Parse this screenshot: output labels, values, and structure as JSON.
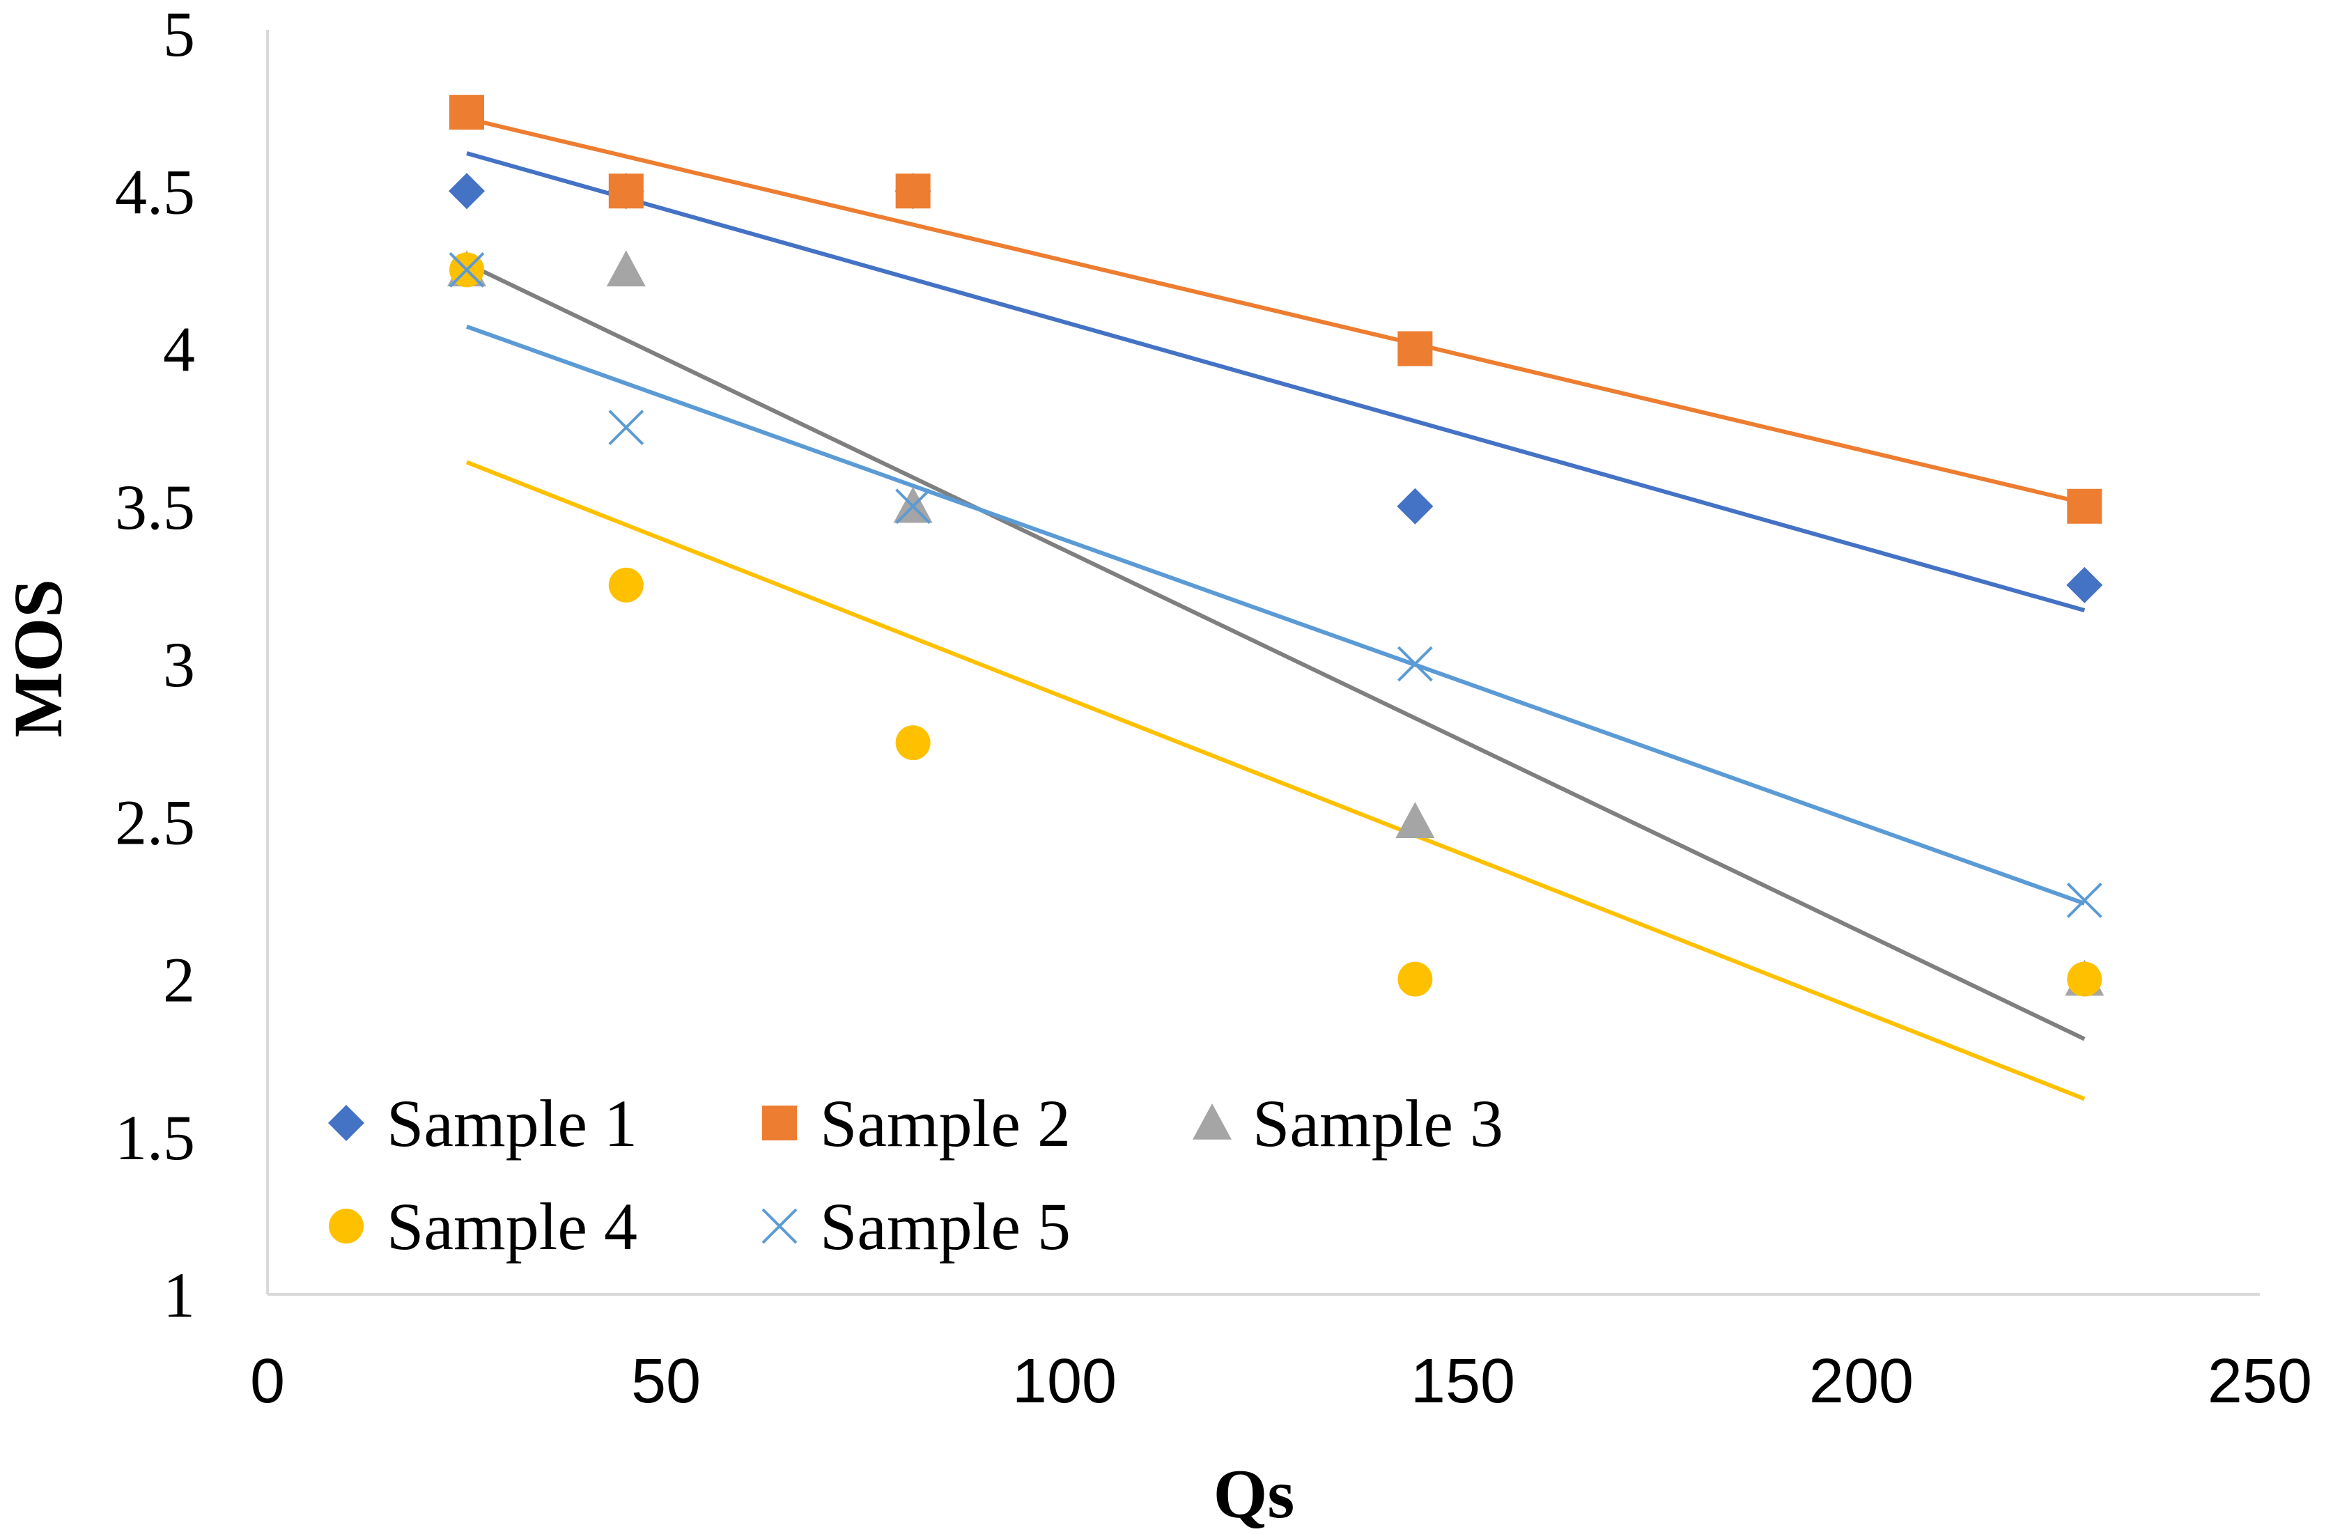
{
  "chart_data": {
    "type": "scatter",
    "title": "",
    "xlabel": "Qs",
    "ylabel": "MOS",
    "xlim": [
      0,
      250
    ],
    "ylim": [
      1,
      5
    ],
    "xticks": [
      0,
      50,
      100,
      150,
      200,
      250
    ],
    "yticks": [
      1,
      1.5,
      2,
      2.5,
      3,
      3.5,
      4,
      4.5,
      5
    ],
    "x": [
      25,
      45,
      81,
      144,
      228
    ],
    "grid": false,
    "legend_position": "bottom-left",
    "series": [
      {
        "name": "Sample 1",
        "marker": "diamond",
        "color": "#4472C4",
        "values": [
          4.5,
          4.5,
          4.5,
          3.5,
          3.25
        ],
        "trend_start": [
          25,
          4.62
        ],
        "trend_end": [
          228,
          3.17
        ]
      },
      {
        "name": "Sample 2",
        "marker": "square",
        "color": "#ED7D31",
        "values": [
          4.75,
          4.5,
          4.5,
          4.0,
          3.5
        ],
        "trend_start": [
          25,
          4.73
        ],
        "trend_end": [
          228,
          3.51
        ]
      },
      {
        "name": "Sample 3",
        "marker": "triangle",
        "color": "#A5A5A5",
        "line_color": "#7F7F7F",
        "values": [
          4.25,
          4.25,
          3.5,
          2.5,
          2.0
        ],
        "trend_start": [
          25,
          4.27
        ],
        "trend_end": [
          228,
          1.81
        ]
      },
      {
        "name": "Sample 4",
        "marker": "circle",
        "color": "#FFC000",
        "values": [
          4.25,
          3.25,
          2.75,
          2.0,
          2.0
        ],
        "trend_start": [
          25,
          3.64
        ],
        "trend_end": [
          228,
          1.62
        ]
      },
      {
        "name": "Sample 5",
        "marker": "x",
        "color": "#5B9BD5",
        "values": [
          4.25,
          3.75,
          3.5,
          3.0,
          2.25
        ],
        "trend_start": [
          25,
          4.07
        ],
        "trend_end": [
          228,
          2.24
        ]
      }
    ]
  }
}
